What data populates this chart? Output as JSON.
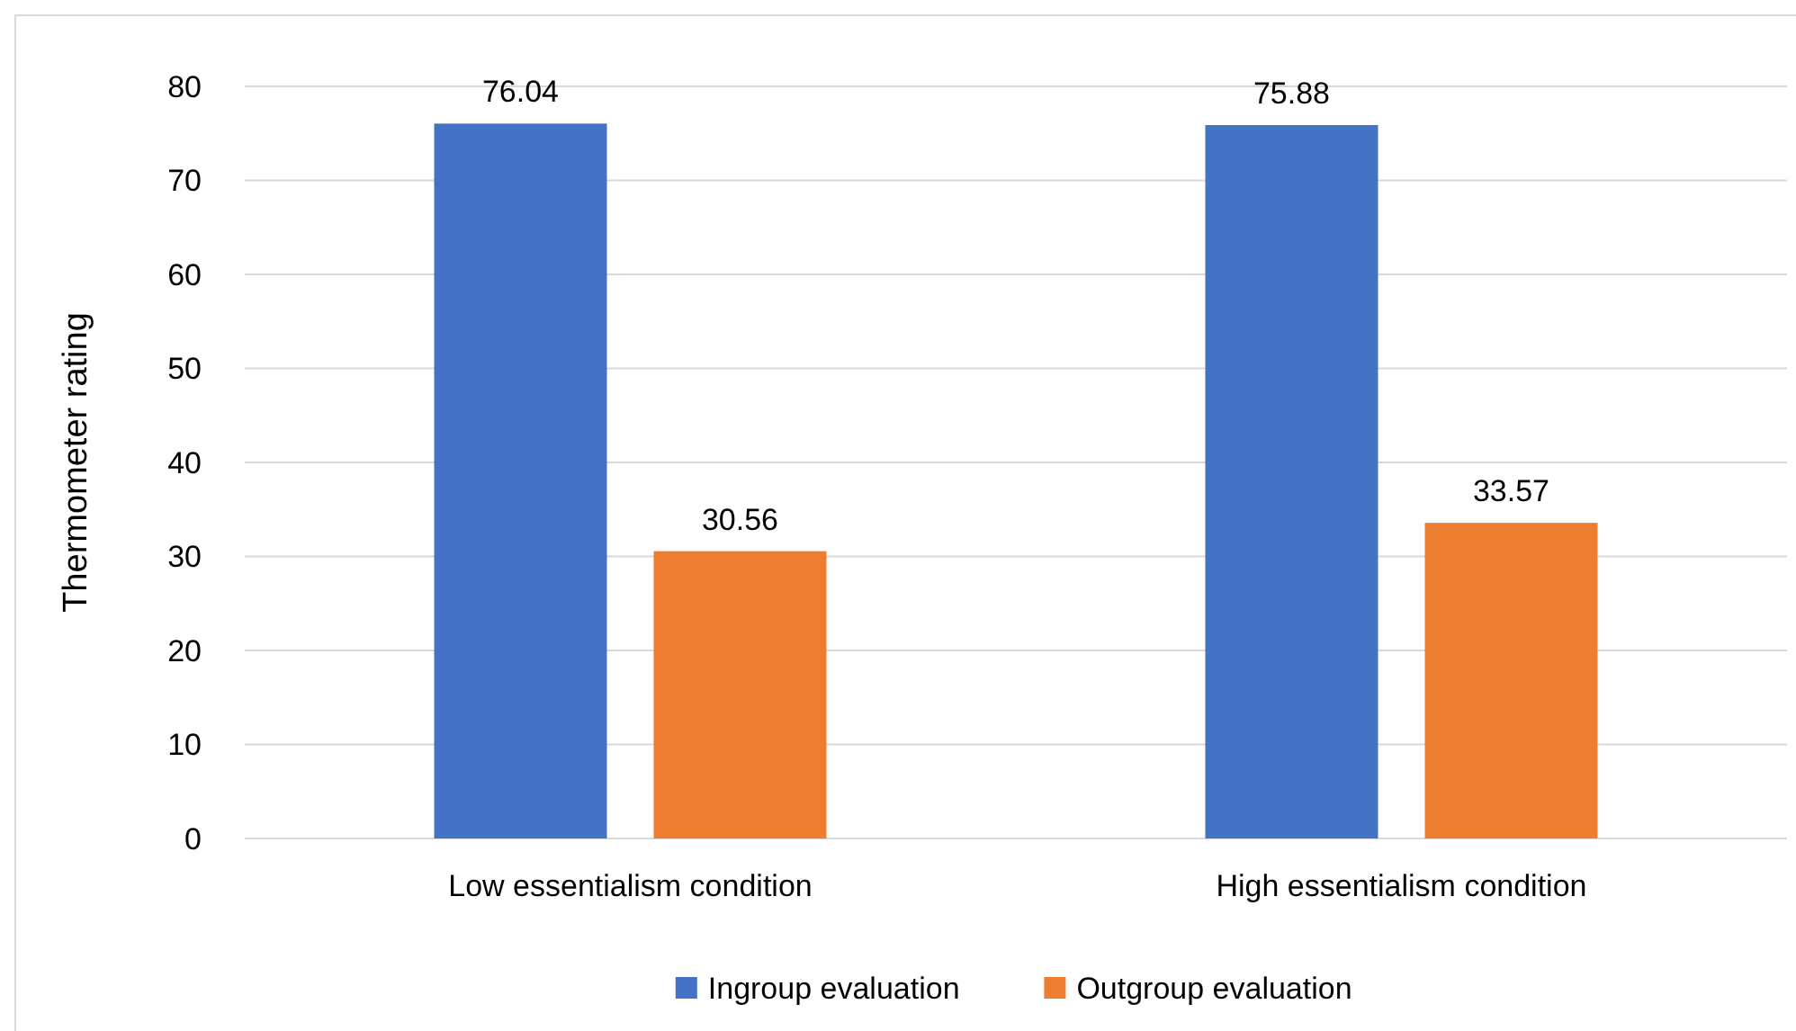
{
  "chart_data": {
    "type": "bar",
    "ylabel": "Thermometer rating",
    "categories": [
      "Low essentialism condition",
      "High essentialism condition"
    ],
    "series": [
      {
        "name": "Ingroup evaluation",
        "color": "#4472c4",
        "values": [
          76.04,
          75.88
        ]
      },
      {
        "name": "Outgroup evaluation",
        "color": "#ed7d31",
        "values": [
          30.56,
          33.57
        ]
      }
    ],
    "ylim": [
      0,
      80
    ],
    "yticks": [
      0,
      10,
      20,
      30,
      40,
      50,
      60,
      70,
      80
    ],
    "grid": "y",
    "legend": "bottom",
    "data_labels": true
  }
}
